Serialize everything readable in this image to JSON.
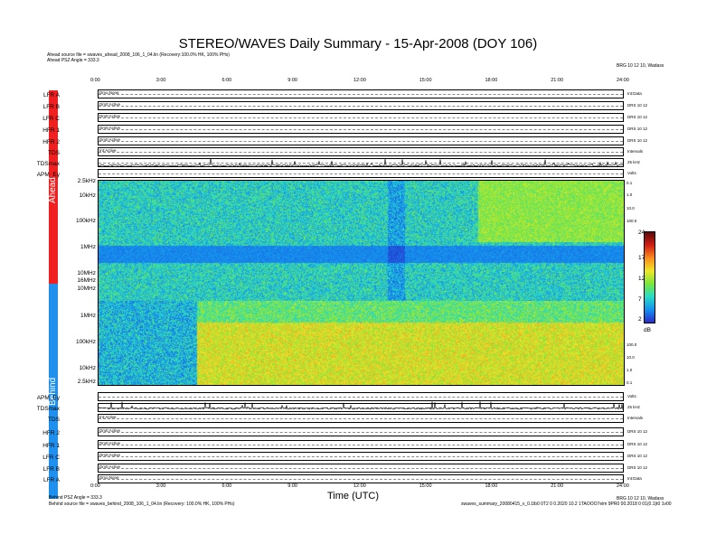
{
  "header": {
    "title": "STEREO/WAVES Daily Summary - 15-Apr-2008 (DOY 106)",
    "ahead_source": "Ahead source file = swaves_ahead_2008_106_1_04.lin (Recovery:100.0% HK, 100% PHs)",
    "ahead_angle": "Ahead PSZ Angle = 333.3",
    "top_right": "BRG 10 12 10, Wadass"
  },
  "footer": {
    "behind_angle": "Behind PSZ Angle = 333.3",
    "behind_source": "Behind source file = swaves_behind_2008_106_1_04.lin (Recovery: 100.0% HK, 100% PHs)",
    "xlabel": "Time (UTC)",
    "bottom_right_1": "BRG 10 12 10, Wadass",
    "bottom_right_2": "swaves_summary_20080415_v_0.1lb0 0T2 0 0.2020 10.2 1TAOOO7eim 9PR0 00.2018 0 01(0.1)t0 1v00"
  },
  "sidebars": {
    "ahead": "Ahead",
    "behind": "Behind",
    "ahead_color": "#f02020",
    "behind_color": "#2090ee"
  },
  "time_ticks": [
    "0:00",
    "3:00",
    "6:00",
    "9:00",
    "12:00",
    "15:00",
    "18:00",
    "21:00",
    "24:00"
  ],
  "ahead_rows": [
    {
      "label": "LFR A",
      "left": "Dmo:None",
      "right": "Int:Data"
    },
    {
      "label": "LFR B",
      "left": "Dm0:Active",
      "right": "DRS 10 12"
    },
    {
      "label": "LFR C",
      "left": "Dm0:Active",
      "right": "DRS 10 12"
    },
    {
      "label": "HFR 1",
      "left": "Dm0:Active",
      "right": "DRS 10 12"
    },
    {
      "label": "HFR 2",
      "left": "Dm0:Active",
      "right": "DRS 10 12"
    },
    {
      "label": "TDS",
      "left": "Int:Active",
      "right": "Intervals"
    },
    {
      "label": "TDSmax",
      "left": "",
      "right": "25 kHz"
    },
    {
      "label": "APM_Ey",
      "left": "",
      "right": "Volts"
    }
  ],
  "behind_rows": [
    {
      "label": "APM_Ey",
      "left": "",
      "right": "Volts"
    },
    {
      "label": "TDSmax",
      "left": "",
      "right": "25 kHz"
    },
    {
      "label": "TDS",
      "left": "Int:Active",
      "right": "Intervals"
    },
    {
      "label": "HFR 2",
      "left": "Dm0:Active",
      "right": "DRS 10 12"
    },
    {
      "label": "HFR 1",
      "left": "Dm0:Active",
      "right": "DRS 10 12"
    },
    {
      "label": "LFR C",
      "left": "Dm0:Active",
      "right": "DRS 10 12"
    },
    {
      "label": "LFR B",
      "left": "Dm0:Active",
      "right": "DRS 10 12"
    },
    {
      "label": "LFR A",
      "left": "Dmo:None",
      "right": "Int:Data"
    }
  ],
  "freq_labels_ahead": [
    "2.5kHz",
    "10kHz",
    "100kHz",
    "1MHz",
    "10MHz",
    "16MHz"
  ],
  "freq_labels_behind": [
    "10MHz",
    "1MHz",
    "100kHz",
    "10kHz",
    "2.5kHz"
  ],
  "right_scale_ahead": [
    "0.1",
    "1.0",
    "10.0",
    "100.0"
  ],
  "right_scale_behind": [
    "100.0",
    "10.0",
    "1.0",
    "0.1"
  ],
  "colorbar": {
    "ticks": [
      "24",
      "17",
      "12",
      "7",
      "2"
    ],
    "unit": "dB"
  },
  "chart_data": {
    "type": "heatmap",
    "title": "STEREO/WAVES Daily Summary - 15-Apr-2008 (DOY 106)",
    "xlabel": "Time (UTC)",
    "x_range_hours": [
      0,
      24
    ],
    "x_ticks": [
      "0:00",
      "3:00",
      "6:00",
      "9:00",
      "12:00",
      "15:00",
      "18:00",
      "21:00",
      "24:00"
    ],
    "panels": [
      {
        "name": "Ahead",
        "y_range": [
          "2.5kHz",
          "16MHz"
        ],
        "y_scale": "log",
        "y_ticks": [
          "2.5kHz",
          "10kHz",
          "100kHz",
          "1MHz",
          "10MHz",
          "16MHz"
        ]
      },
      {
        "name": "Behind",
        "y_range": [
          "2.5kHz",
          "16MHz"
        ],
        "y_scale": "log",
        "y_ticks": [
          "10MHz",
          "1MHz",
          "100kHz",
          "10kHz",
          "2.5kHz"
        ]
      }
    ],
    "colorbar": {
      "range": [
        2,
        24
      ],
      "ticks": [
        24,
        17,
        12,
        7,
        2
      ],
      "unit": "dB"
    }
  }
}
